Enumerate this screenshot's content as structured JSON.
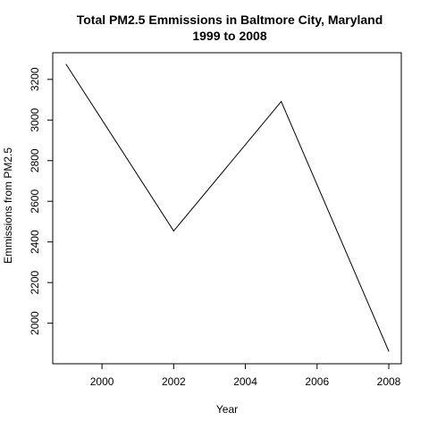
{
  "chart_data": {
    "type": "line",
    "title": "Total PM2.5 Emmissions in Baltmore City, Maryland",
    "subtitle": "1999 to 2008",
    "xlabel": "Year",
    "ylabel": "Emmissions from PM2.5",
    "x": [
      1999,
      2002,
      2005,
      2008
    ],
    "y": [
      3274,
      2454,
      3091,
      1862
    ],
    "xlim": [
      1999,
      2008
    ],
    "ylim": [
      1862,
      3274
    ],
    "x_ticks": [
      "2000",
      "2002",
      "2004",
      "2006",
      "2008"
    ],
    "y_ticks": [
      "2000",
      "2200",
      "2400",
      "2600",
      "2800",
      "3000",
      "3200"
    ],
    "line_color": "#000000",
    "grid": false,
    "legend": "none"
  }
}
